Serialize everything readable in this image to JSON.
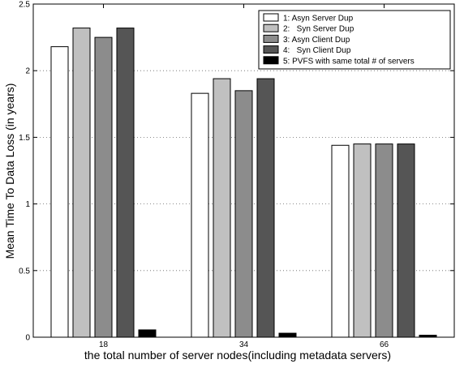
{
  "chart_data": {
    "type": "bar",
    "title": "",
    "xlabel": "the total number of server nodes(including metadata servers)",
    "ylabel": "Mean Time To Data Loss (in years)",
    "ylim": [
      0,
      2.5
    ],
    "yticks": [
      "0",
      "0.5",
      "1",
      "1.5",
      "2",
      "2.5"
    ],
    "categories": [
      "18",
      "34",
      "66"
    ],
    "grid": "dotted horizontal",
    "legend_position": "top-right",
    "series": [
      {
        "name": "1: Asyn Server Dup",
        "color": "#ffffff",
        "values": [
          2.18,
          1.83,
          1.44
        ]
      },
      {
        "name": "2:   Syn Server Dup",
        "color": "#c0c0c0",
        "values": [
          2.32,
          1.94,
          1.45
        ]
      },
      {
        "name": "3: Asyn Client Dup",
        "color": "#8c8c8c",
        "values": [
          2.25,
          1.85,
          1.45
        ]
      },
      {
        "name": "4:   Syn Client Dup",
        "color": "#555555",
        "values": [
          2.32,
          1.94,
          1.45
        ]
      },
      {
        "name": "5: PVFS with same total # of servers",
        "color": "#000000",
        "values": [
          0.055,
          0.03,
          0.015
        ]
      }
    ]
  }
}
